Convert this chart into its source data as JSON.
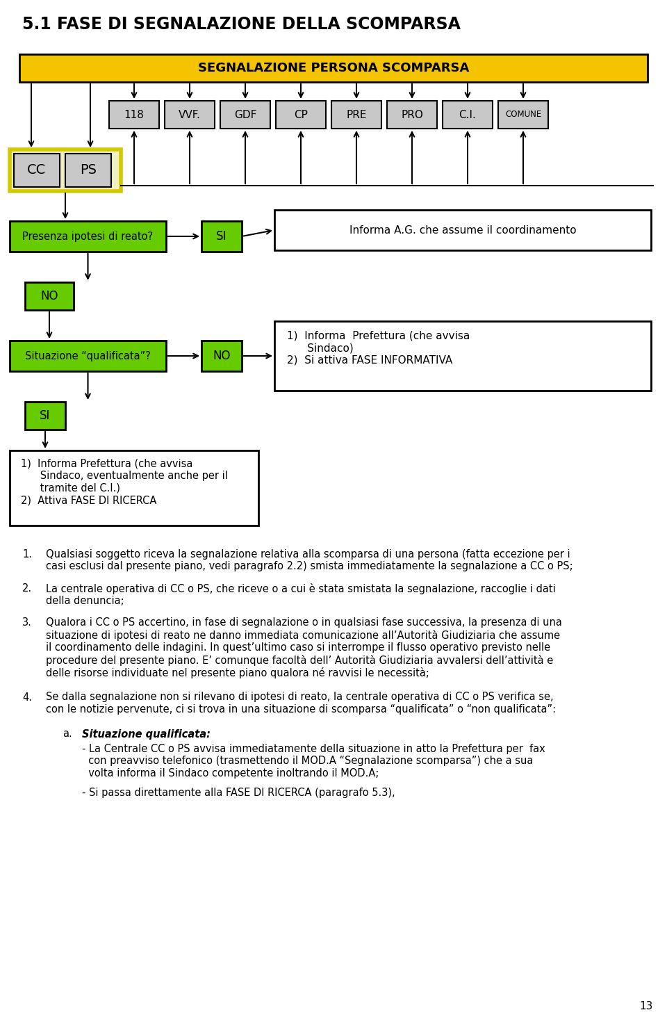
{
  "title": "5.1 FASE DI SEGNALAZIONE DELLA SCOMPARSA",
  "bg": "#ffffff",
  "yellow_bg": "#f5c400",
  "gray_bg": "#c8c8c8",
  "green_bg": "#66cc00",
  "ccps_border": "#d4c800",
  "ccps_fill": "#f0f0c0",
  "gray_labels": [
    "118",
    "VVF.",
    "GDF",
    "CP",
    "PRE",
    "PRO",
    "C.I.",
    "COMUNE"
  ],
  "page_number": "13"
}
